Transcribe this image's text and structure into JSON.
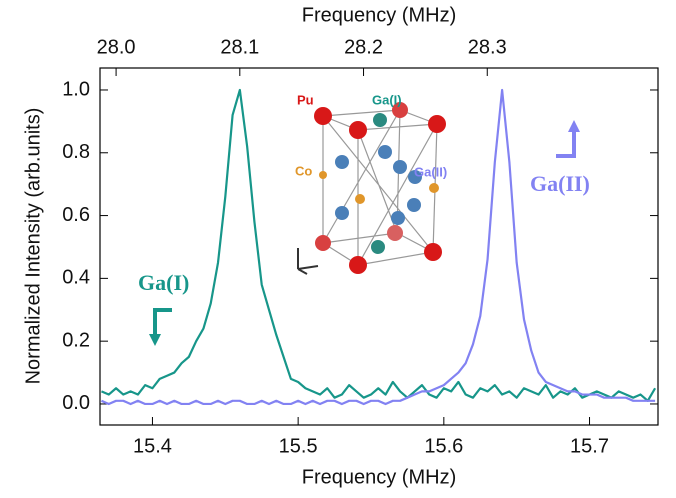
{
  "chart_data": {
    "type": "line",
    "xlabel": "Frequency (MHz)",
    "x2label": "Frequency (MHz)",
    "ylabel": "Normalized Intensity (arb.units)",
    "x": [
      15.365,
      15.37,
      15.375,
      15.38,
      15.385,
      15.39,
      15.395,
      15.4,
      15.405,
      15.41,
      15.415,
      15.42,
      15.425,
      15.43,
      15.435,
      15.44,
      15.445,
      15.45,
      15.455,
      15.46,
      15.465,
      15.47,
      15.475,
      15.48,
      15.485,
      15.49,
      15.495,
      15.5,
      15.505,
      15.51,
      15.515,
      15.52,
      15.525,
      15.53,
      15.535,
      15.54,
      15.545,
      15.55,
      15.555,
      15.56,
      15.565,
      15.57,
      15.575,
      15.58,
      15.585,
      15.59,
      15.595,
      15.6,
      15.605,
      15.61,
      15.615,
      15.62,
      15.625,
      15.63,
      15.635,
      15.64,
      15.645,
      15.65,
      15.655,
      15.66,
      15.665,
      15.67,
      15.675,
      15.68,
      15.685,
      15.69,
      15.695,
      15.7,
      15.705,
      15.71,
      15.715,
      15.72,
      15.725,
      15.73,
      15.735,
      15.74,
      15.745
    ],
    "series": [
      {
        "name": "Ga(I)",
        "color": "#17968a",
        "values": [
          0.04,
          0.03,
          0.05,
          0.03,
          0.04,
          0.03,
          0.06,
          0.05,
          0.08,
          0.09,
          0.1,
          0.13,
          0.15,
          0.2,
          0.24,
          0.32,
          0.45,
          0.66,
          0.92,
          1.0,
          0.82,
          0.58,
          0.38,
          0.3,
          0.22,
          0.15,
          0.08,
          0.07,
          0.05,
          0.04,
          0.03,
          0.05,
          0.02,
          0.03,
          0.06,
          0.04,
          0.02,
          0.03,
          0.05,
          0.03,
          0.07,
          0.04,
          0.02,
          0.04,
          0.06,
          0.03,
          0.02,
          0.05,
          0.04,
          0.07,
          0.03,
          0.02,
          0.05,
          0.04,
          0.06,
          0.03,
          0.04,
          0.02,
          0.05,
          0.04,
          0.03,
          0.06,
          0.02,
          0.04,
          0.03,
          0.05,
          0.02,
          0.03,
          0.04,
          0.03,
          0.02,
          0.04,
          0.03,
          0.02,
          0.03,
          0.01,
          0.05
        ]
      },
      {
        "name": "Ga(II)",
        "color": "#8282f2",
        "values": [
          0.01,
          0.0,
          0.01,
          0.01,
          0.0,
          0.01,
          0.0,
          0.0,
          0.01,
          0.0,
          0.01,
          0.0,
          0.0,
          0.01,
          0.0,
          0.0,
          0.01,
          0.0,
          0.01,
          0.01,
          0.0,
          0.0,
          0.01,
          0.0,
          0.01,
          0.0,
          0.0,
          0.01,
          0.0,
          0.01,
          0.0,
          0.01,
          0.01,
          0.0,
          0.01,
          0.01,
          0.0,
          0.01,
          0.01,
          0.0,
          0.01,
          0.01,
          0.02,
          0.03,
          0.04,
          0.04,
          0.05,
          0.06,
          0.08,
          0.1,
          0.13,
          0.19,
          0.28,
          0.46,
          0.77,
          1.0,
          0.77,
          0.45,
          0.27,
          0.17,
          0.1,
          0.07,
          0.06,
          0.05,
          0.04,
          0.04,
          0.03,
          0.03,
          0.03,
          0.02,
          0.02,
          0.02,
          0.02,
          0.01,
          0.01,
          0.01,
          0.01
        ]
      }
    ],
    "xlim": [
      15.364,
      15.747
    ],
    "xticks": [
      15.4,
      15.5,
      15.6,
      15.7
    ],
    "x2lim": [
      27.987,
      28.438
    ],
    "x2ticks": [
      {
        "value": 28,
        "label": "28.0"
      },
      28.1,
      28.2,
      28.3
    ],
    "ylim": [
      -0.067,
      1.07
    ],
    "yticks": [
      {
        "value": 0,
        "label": "0.0"
      },
      0.2,
      0.4,
      0.6,
      0.8,
      {
        "value": 1,
        "label": "1.0"
      }
    ],
    "grid": false,
    "inset_labels": [
      "Pu",
      "Ga(I)",
      "Co",
      "Ga(II)"
    ]
  }
}
